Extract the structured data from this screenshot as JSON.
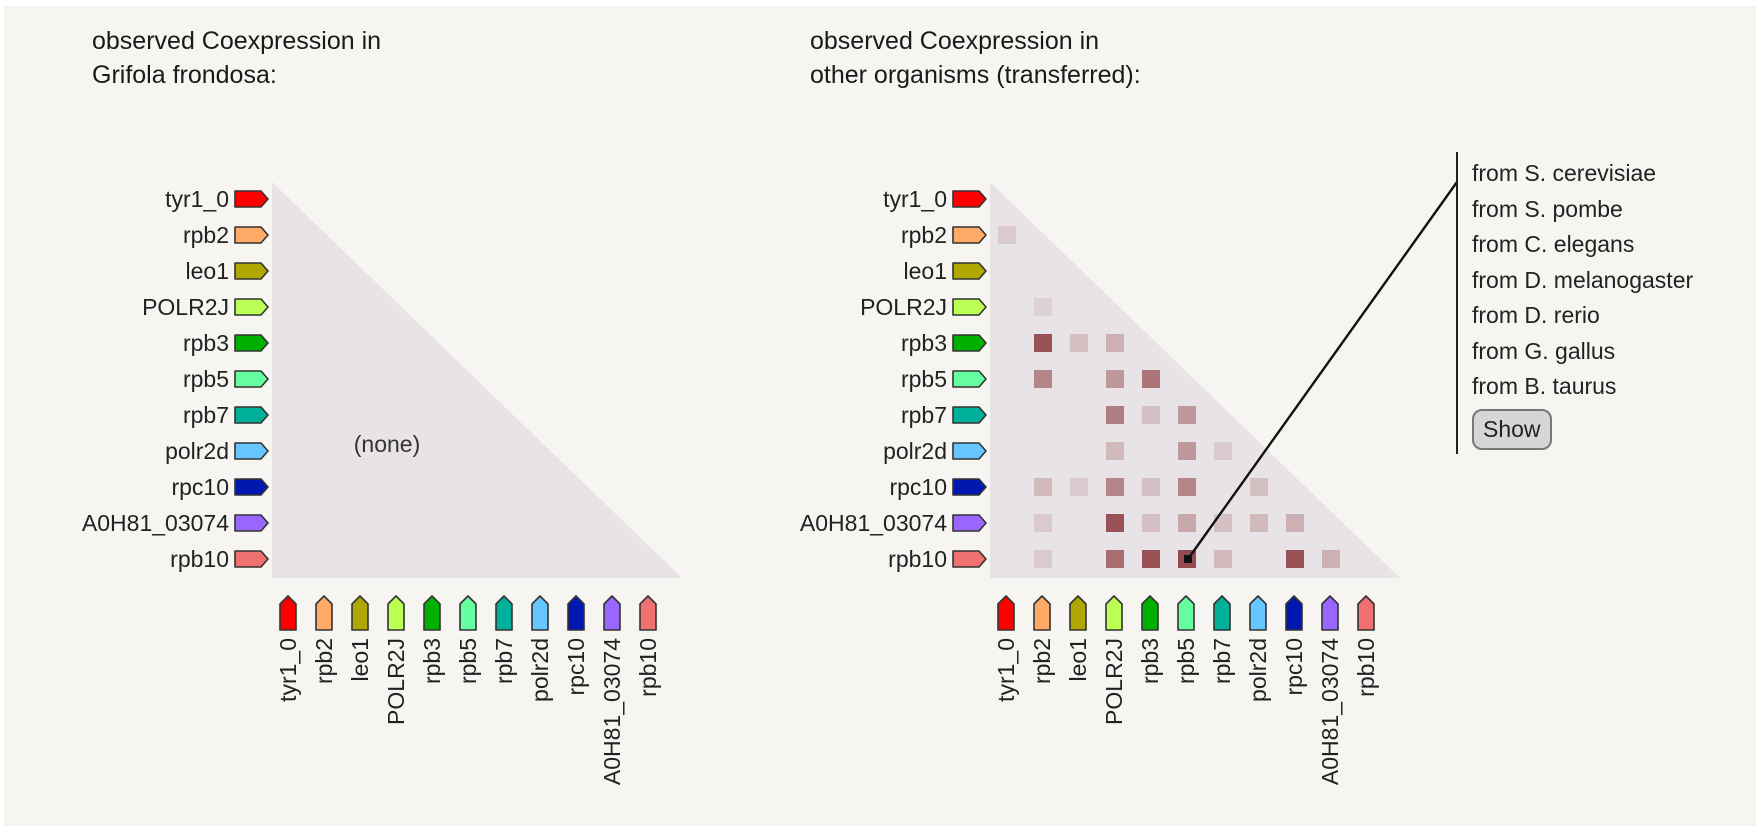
{
  "panels": {
    "left": {
      "title_line1": "observed Coexpression in",
      "title_line2": "Grifola frondosa:",
      "empty_label": "(none)"
    },
    "right": {
      "title_line1": "observed Coexpression in",
      "title_line2": "other organisms (transferred):"
    }
  },
  "legend": {
    "items": [
      "from S. cerevisiae",
      "from S. pombe",
      "from C. elegans",
      "from D. melanogaster",
      "from D. rerio",
      "from G. gallus",
      "from B. taurus"
    ],
    "show_button": "Show"
  },
  "colors": {
    "background": "#f7f5f2",
    "triangle": "#e8e3e6",
    "cell_base": "#8b3a3e",
    "connector": "#111111"
  },
  "chart_data": [
    {
      "type": "heatmap",
      "title": "observed Coexpression in Grifola frondosa:",
      "genes": [
        "tyr1_0",
        "rpb2",
        "leo1",
        "POLR2J",
        "rpb3",
        "rpb5",
        "rpb7",
        "polr2d",
        "rpc10",
        "A0H81_03074",
        "rpb10"
      ],
      "gene_colors": [
        "#ff0000",
        "#ffaa66",
        "#b0a800",
        "#bbff55",
        "#00b000",
        "#66ffa0",
        "#00b09a",
        "#66c6ff",
        "#0018b0",
        "#9966ff",
        "#f07070"
      ],
      "cells": [],
      "empty_label": "(none)",
      "layout": "lower-triangle"
    },
    {
      "type": "heatmap",
      "title": "observed Coexpression in other organisms (transferred):",
      "genes": [
        "tyr1_0",
        "rpb2",
        "leo1",
        "POLR2J",
        "rpb3",
        "rpb5",
        "rpb7",
        "polr2d",
        "rpc10",
        "A0H81_03074",
        "rpb10"
      ],
      "gene_colors": [
        "#ff0000",
        "#ffaa66",
        "#b0a800",
        "#bbff55",
        "#00b000",
        "#66ffa0",
        "#00b09a",
        "#66c6ff",
        "#0018b0",
        "#9966ff",
        "#f07070"
      ],
      "layout": "lower-triangle",
      "value_range": [
        0,
        1
      ],
      "cells": [
        {
          "row": "rpb2",
          "col": "tyr1_0",
          "value": 0.15
        },
        {
          "row": "POLR2J",
          "col": "rpb2",
          "value": 0.1
        },
        {
          "row": "rpb3",
          "col": "rpb2",
          "value": 0.85
        },
        {
          "row": "rpb3",
          "col": "leo1",
          "value": 0.2
        },
        {
          "row": "rpb3",
          "col": "POLR2J",
          "value": 0.3
        },
        {
          "row": "rpb5",
          "col": "rpb2",
          "value": 0.55
        },
        {
          "row": "rpb5",
          "col": "POLR2J",
          "value": 0.45
        },
        {
          "row": "rpb5",
          "col": "rpb3",
          "value": 0.65
        },
        {
          "row": "rpb7",
          "col": "POLR2J",
          "value": 0.6
        },
        {
          "row": "rpb7",
          "col": "rpb3",
          "value": 0.2
        },
        {
          "row": "rpb7",
          "col": "rpb5",
          "value": 0.45
        },
        {
          "row": "polr2d",
          "col": "POLR2J",
          "value": 0.25
        },
        {
          "row": "polr2d",
          "col": "rpb5",
          "value": 0.45
        },
        {
          "row": "polr2d",
          "col": "rpb7",
          "value": 0.15
        },
        {
          "row": "rpc10",
          "col": "rpb2",
          "value": 0.25
        },
        {
          "row": "rpc10",
          "col": "leo1",
          "value": 0.15
        },
        {
          "row": "rpc10",
          "col": "POLR2J",
          "value": 0.55
        },
        {
          "row": "rpc10",
          "col": "rpb3",
          "value": 0.2
        },
        {
          "row": "rpc10",
          "col": "rpb5",
          "value": 0.55
        },
        {
          "row": "rpc10",
          "col": "polr2d",
          "value": 0.2
        },
        {
          "row": "A0H81_03074",
          "col": "rpb2",
          "value": 0.15
        },
        {
          "row": "A0H81_03074",
          "col": "POLR2J",
          "value": 0.85
        },
        {
          "row": "A0H81_03074",
          "col": "rpb3",
          "value": 0.2
        },
        {
          "row": "A0H81_03074",
          "col": "rpb5",
          "value": 0.35
        },
        {
          "row": "A0H81_03074",
          "col": "rpb7",
          "value": 0.2
        },
        {
          "row": "A0H81_03074",
          "col": "polr2d",
          "value": 0.25
        },
        {
          "row": "A0H81_03074",
          "col": "rpc10",
          "value": 0.3
        },
        {
          "row": "rpb10",
          "col": "rpb2",
          "value": 0.15
        },
        {
          "row": "rpb10",
          "col": "POLR2J",
          "value": 0.7
        },
        {
          "row": "rpb10",
          "col": "rpb3",
          "value": 0.85
        },
        {
          "row": "rpb10",
          "col": "rpb5",
          "value": 0.9,
          "selected": true
        },
        {
          "row": "rpb10",
          "col": "rpb7",
          "value": 0.25
        },
        {
          "row": "rpb10",
          "col": "rpc10",
          "value": 0.85
        },
        {
          "row": "rpb10",
          "col": "A0H81_03074",
          "value": 0.3
        }
      ],
      "annotation": "connector line from selected cell (rpb10 × rpb5) to legend"
    }
  ]
}
